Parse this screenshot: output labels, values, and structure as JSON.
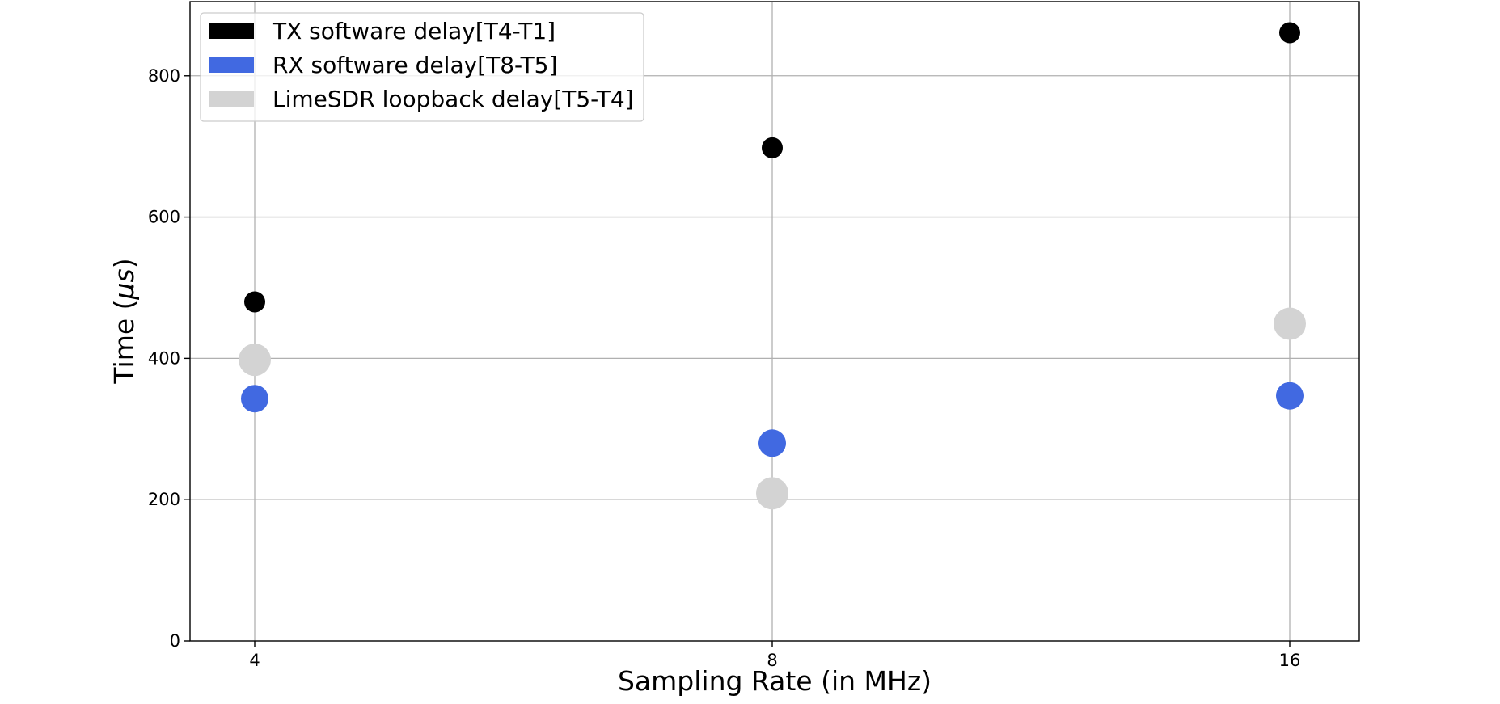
{
  "chart_data": {
    "type": "scatter",
    "title": "",
    "xlabel": "Sampling Rate (in MHz)",
    "ylabel_prefix": "Time (",
    "ylabel_unit": "μs",
    "ylabel_suffix": ")",
    "categories": [
      "4",
      "8",
      "16"
    ],
    "ylim": [
      0,
      905
    ],
    "yticks": [
      "0",
      "200",
      "400",
      "600",
      "800"
    ],
    "grid": true,
    "legend_position": "upper-left",
    "series": [
      {
        "name": "TX software delay[T4-T1]",
        "color": "#000000",
        "marker": "small-circle",
        "values": [
          480,
          698,
          861
        ]
      },
      {
        "name": "RX software delay[T8-T5]",
        "color": "#4169e1",
        "marker": "circle",
        "values": [
          343,
          280,
          347
        ]
      },
      {
        "name": "LimeSDR loopback delay[T5-T4]",
        "color": "#d3d3d3",
        "marker": "large-circle",
        "values": [
          398,
          209,
          449
        ]
      }
    ]
  }
}
